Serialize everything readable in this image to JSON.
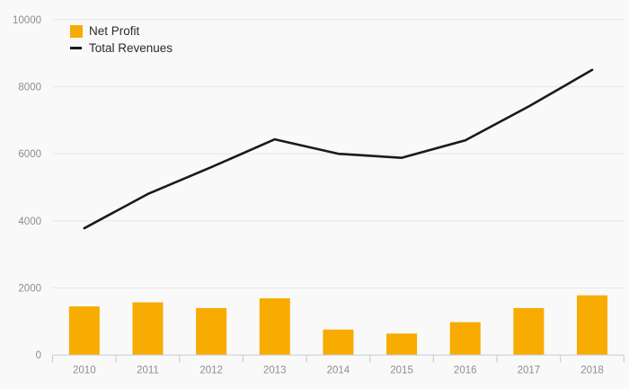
{
  "chart": {
    "background_color": "#f9f9f9",
    "grid_color": "#e7e7e7",
    "axis_color": "#c9cfdc",
    "axis_label_color": "#8e8e8e"
  },
  "chart_data": {
    "type": "bar",
    "subtype": "bar and line combo",
    "title": "",
    "categories": [
      "2010",
      "2011",
      "2012",
      "2013",
      "2014",
      "2015",
      "2016",
      "2017",
      "2018"
    ],
    "series": [
      {
        "name": "Net Profit",
        "type": "bar",
        "color": "#f8ab00",
        "values": [
          1450,
          1570,
          1400,
          1690,
          760,
          640,
          980,
          1400,
          1780
        ]
      },
      {
        "name": "Total Revenues",
        "type": "line",
        "color": "#1a1a1a",
        "values": [
          3780,
          4800,
          5600,
          6430,
          6000,
          5880,
          6400,
          7410,
          8500
        ]
      }
    ],
    "xlabel": "",
    "ylabel": "",
    "ylim": [
      0,
      10000
    ],
    "yticks": [
      0,
      2000,
      4000,
      6000,
      8000,
      10000
    ],
    "grid": "horizontal",
    "legend_position": "top-left"
  }
}
